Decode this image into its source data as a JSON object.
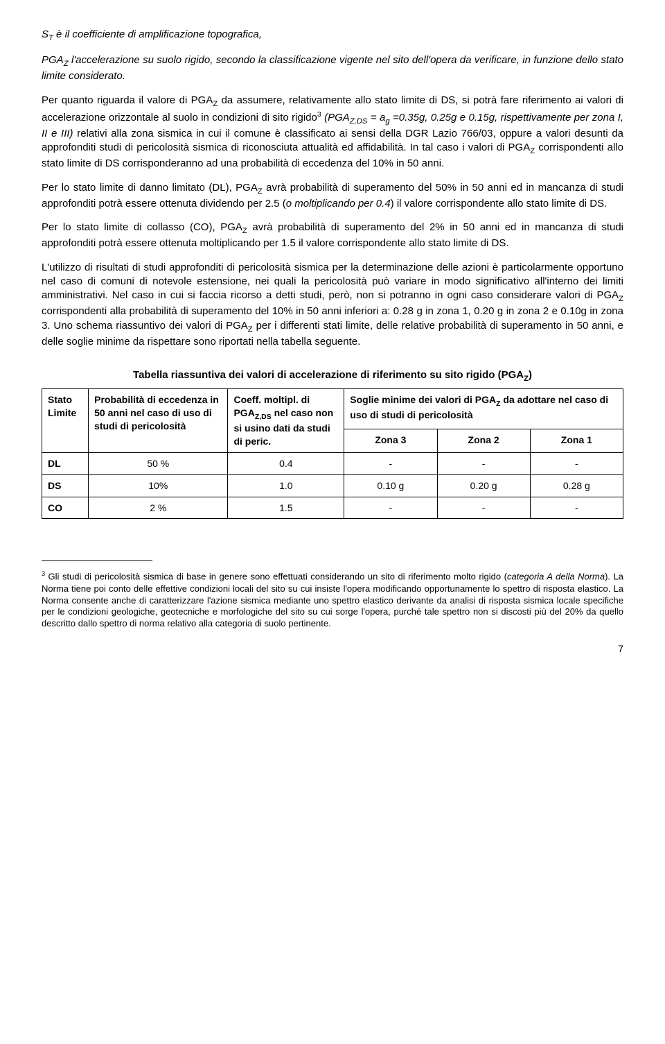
{
  "p1_a": "S",
  "p1_a_sub": "T",
  "p1_b": " è il coefficiente di amplificazione topografica,",
  "p2_a": "PGA",
  "p2_a_sub": "Z",
  "p2_b": " l'accelerazione su suolo rigido, secondo la classificazione vigente nel sito dell'opera da verificare, in funzione dello stato limite considerato.",
  "p3_a": "Per quanto riguarda il valore di PGA",
  "p3_z": "Z",
  "p3_b": " da assumere, relativamente allo stato limite di DS, si potrà fare riferimento ai valori di accelerazione orizzontale al suolo in condizioni di sito rigido",
  "p3_fn": "3",
  "p3_c": " (PGA",
  "p3_zds": "Z,DS",
  "p3_d": " = a",
  "p3_g": "g",
  "p3_e": " =0.35g, 0.25g e 0.15g, rispettivamente per zona I, II e III)",
  "p3_f": " relativi alla zona sismica in cui il comune è classificato ai sensi della DGR Lazio 766/03, oppure a valori desunti da approfonditi studi di pericolosità sismica di riconosciuta attualità ed affidabilità. In tal caso i valori di PGA",
  "p3_z2": "Z",
  "p3_h": " corrispondenti allo stato limite di DS corrisponderanno ad una probabilità di eccedenza del 10% in 50 anni.",
  "p4_a": "Per lo stato limite di danno limitato (DL), PGA",
  "p4_z": "Z",
  "p4_b": " avrà probabilità di superamento del 50% in 50 anni ed in mancanza di studi approfonditi potrà essere ottenuta dividendo per 2.5 (",
  "p4_c": "o moltiplicando per 0.4",
  "p4_d": ") il valore corrispondente allo stato limite di DS.",
  "p5_a": "Per lo stato limite di collasso (CO), PGA",
  "p5_z": "Z",
  "p5_b": " avrà probabilità di superamento del 2% in 50 anni ed in mancanza di studi approfonditi potrà essere ottenuta moltiplicando per 1.5 il valore corrispondente allo stato limite di DS.",
  "p6_a": "L'utilizzo di risultati di studi approfonditi di pericolosità sismica per la determinazione delle azioni è particolarmente opportuno nel caso di comuni di notevole estensione, nei quali la pericolosità può variare in modo significativo all'interno dei limiti amministrativi. Nel caso in cui si faccia ricorso a detti studi, però, non si potranno in ogni caso considerare valori di PGA",
  "p6_z": "Z",
  "p6_b": " corrispondenti alla probabilità di superamento del 10% in 50 anni inferiori a: 0.28 g in zona 1, 0.20 g in zona 2 e 0.10g in zona 3. Uno schema riassuntivo dei valori di PGA",
  "p6_z2": "Z",
  "p6_c": " per i differenti stati limite, delle relative probabilità di superamento in 50 anni, e delle soglie minime da rispettare sono riportati nella tabella seguente.",
  "table_title_a": "Tabella riassuntiva dei valori di accelerazione di riferimento su sito rigido (PGA",
  "table_title_z": "Z",
  "table_title_b": ")",
  "hdr_stato": "Stato Limite",
  "hdr_prob": "Probabilità di eccedenza in 50 anni nel caso di uso di studi di pericolosità",
  "hdr_coeff_a": "Coeff. moltipl. di PGA",
  "hdr_coeff_zds": "Z,DS",
  "hdr_coeff_b": " nel caso non si usino dati da studi di peric.",
  "hdr_soglie_a": "Soglie minime dei valori di PGA",
  "hdr_soglie_z": "Z",
  "hdr_soglie_b": " da adottare nel caso di uso di studi di pericolosità",
  "hdr_zona3": "Zona 3",
  "hdr_zona2": "Zona 2",
  "hdr_zona1": "Zona 1",
  "rows": [
    {
      "stato": "DL",
      "prob": "50 %",
      "coeff": "0.4",
      "z3": "-",
      "z2": "-",
      "z1": "-"
    },
    {
      "stato": "DS",
      "prob": "10%",
      "coeff": "1.0",
      "z3": "0.10 g",
      "z2": "0.20 g",
      "z1": "0.28 g"
    },
    {
      "stato": "CO",
      "prob": "2 %",
      "coeff": "1.5",
      "z3": "-",
      "z2": "-",
      "z1": "-"
    }
  ],
  "fn_marker": "3",
  "fn_a": " Gli studi di pericolosità sismica di base in genere sono effettuati considerando un sito di riferimento molto rigido (",
  "fn_b": "categoria A della Norma",
  "fn_c": "). La Norma tiene poi conto delle effettive condizioni locali del sito su cui insiste l'opera modificando opportunamente lo spettro di risposta elastico. La Norma consente anche di caratterizzare l'azione sismica mediante uno spettro elastico derivante da analisi di risposta sismica locale specifiche per le condizioni geologiche, geotecniche e morfologiche del sito su cui sorge l'opera, purché tale spettro non si discosti più del 20% da quello descritto dallo spettro di norma relativo alla categoria di suolo pertinente.",
  "page_number": "7"
}
